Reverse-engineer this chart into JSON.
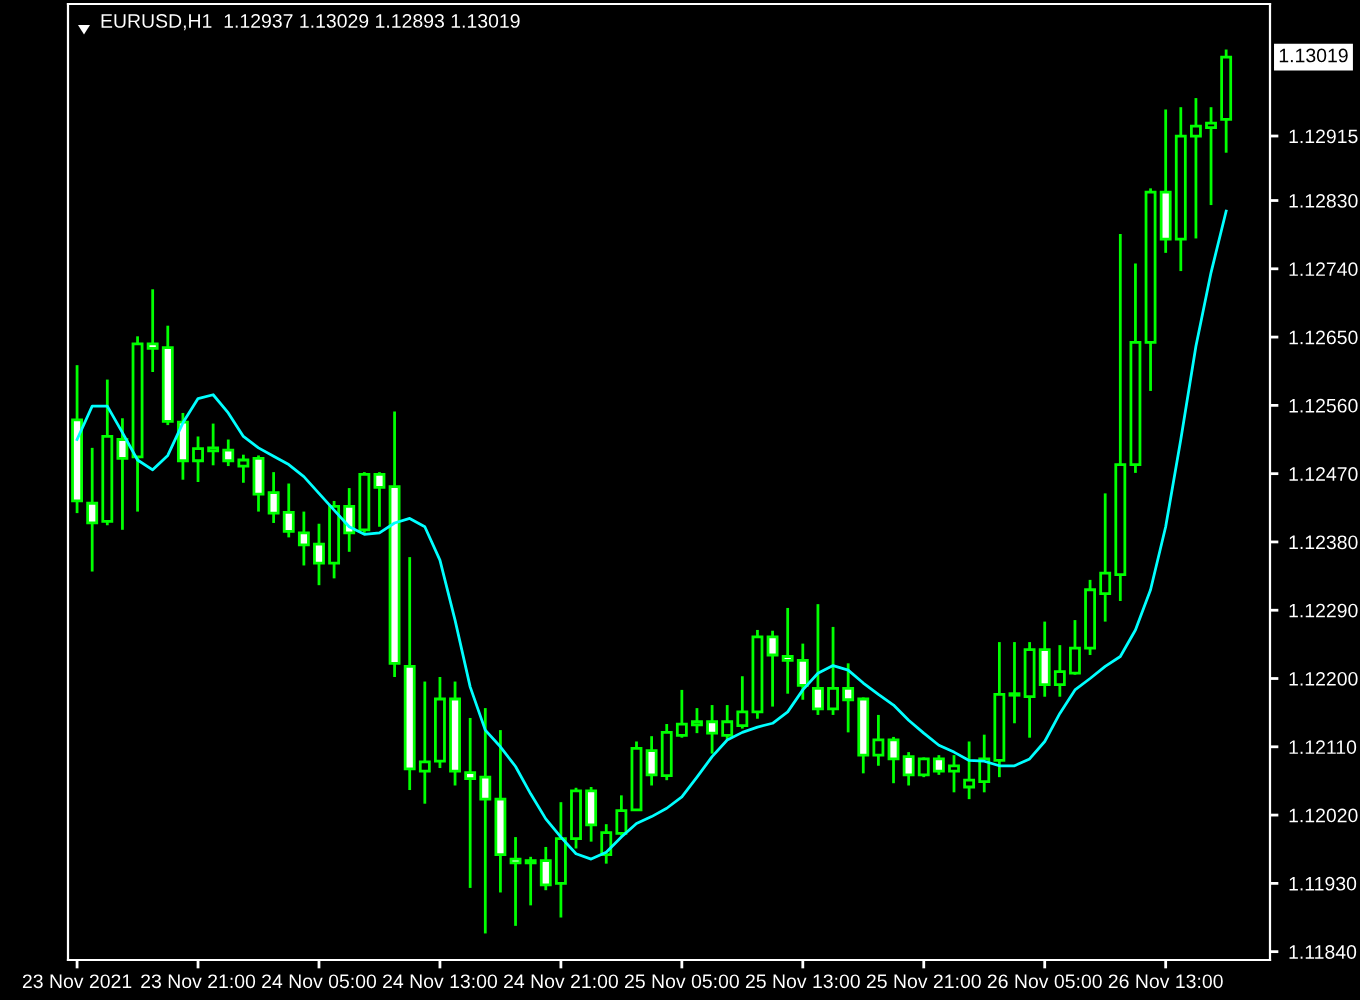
{
  "chart_data": {
    "type": "candlestick",
    "title": "EURUSD,H1  1.12937 1.13029 1.12893 1.13019",
    "categories": [
      "23 Nov 2021",
      null,
      null,
      null,
      null,
      null,
      null,
      null,
      "23 Nov 21:00",
      null,
      null,
      null,
      null,
      null,
      null,
      null,
      "24 Nov 05:00",
      null,
      null,
      null,
      null,
      null,
      null,
      null,
      "24 Nov 13:00",
      null,
      null,
      null,
      null,
      null,
      null,
      null,
      "24 Nov 21:00",
      null,
      null,
      null,
      null,
      null,
      null,
      null,
      "25 Nov 05:00",
      null,
      null,
      null,
      null,
      null,
      null,
      null,
      "25 Nov 13:00",
      null,
      null,
      null,
      null,
      null,
      null,
      null,
      "25 Nov 21:00",
      null,
      null,
      null,
      null,
      null,
      null,
      null,
      "26 Nov 05:00",
      null,
      null,
      null,
      null,
      null,
      null,
      null,
      "26 Nov 13:00",
      null,
      null,
      null,
      null
    ],
    "series": [
      {
        "type": "candlestick",
        "color": "#00ff00",
        "ohlc": [
          [
            1.12541,
            1.12613,
            1.12418,
            1.12434
          ],
          [
            1.12431,
            1.12504,
            1.12341,
            1.12405
          ],
          [
            1.12407,
            1.12594,
            1.12402,
            1.12519
          ],
          [
            1.12515,
            1.12543,
            1.12396,
            1.1249
          ],
          [
            1.12492,
            1.12651,
            1.1242,
            1.12641
          ],
          [
            1.12641,
            1.12713,
            1.12604,
            1.12635
          ],
          [
            1.12636,
            1.12665,
            1.12534,
            1.12539
          ],
          [
            1.12538,
            1.1255,
            1.12462,
            1.12487
          ],
          [
            1.12487,
            1.12519,
            1.12459,
            1.12503
          ],
          [
            1.125,
            1.12536,
            1.12481,
            1.12504
          ],
          [
            1.12501,
            1.12515,
            1.1248,
            1.12487
          ],
          [
            1.1248,
            1.12495,
            1.12458,
            1.12488
          ],
          [
            1.1249,
            1.12494,
            1.1242,
            1.12443
          ],
          [
            1.12445,
            1.12472,
            1.12405,
            1.12418
          ],
          [
            1.12419,
            1.12457,
            1.12386,
            1.12394
          ],
          [
            1.12392,
            1.1242,
            1.12349,
            1.12376
          ],
          [
            1.12377,
            1.12404,
            1.12323,
            1.12352
          ],
          [
            1.12352,
            1.12434,
            1.12332,
            1.12427
          ],
          [
            1.12427,
            1.12451,
            1.12367,
            1.12392
          ],
          [
            1.12396,
            1.12472,
            1.12392,
            1.12469
          ],
          [
            1.12469,
            1.12472,
            1.124,
            1.12452
          ],
          [
            1.12453,
            1.12552,
            1.12202,
            1.1222
          ],
          [
            1.12216,
            1.1236,
            1.12053,
            1.12081
          ],
          [
            1.12078,
            1.12196,
            1.12035,
            1.1209
          ],
          [
            1.12091,
            1.12202,
            1.12082,
            1.12173
          ],
          [
            1.12173,
            1.12196,
            1.12059,
            1.12078
          ],
          [
            1.12076,
            1.12148,
            1.11924,
            1.12068
          ],
          [
            1.1207,
            1.12161,
            1.11864,
            1.12041
          ],
          [
            1.12041,
            1.12132,
            1.11918,
            1.11968
          ],
          [
            1.11962,
            1.11991,
            1.11874,
            1.11957
          ],
          [
            1.1196,
            1.11965,
            1.11901,
            1.11957
          ],
          [
            1.1196,
            1.11978,
            1.11921,
            1.11928
          ],
          [
            1.1193,
            1.12037,
            1.11885,
            1.11989
          ],
          [
            1.11989,
            1.12056,
            1.11976,
            1.12052
          ],
          [
            1.12052,
            1.12057,
            1.11985,
            1.12007
          ],
          [
            1.11968,
            1.12008,
            1.11956,
            1.11997
          ],
          [
            1.11996,
            1.12046,
            1.11993,
            1.12026
          ],
          [
            1.12027,
            1.12117,
            1.12026,
            1.12108
          ],
          [
            1.12105,
            1.12124,
            1.12059,
            1.12073
          ],
          [
            1.12072,
            1.1214,
            1.12066,
            1.12129
          ],
          [
            1.12125,
            1.12185,
            1.12122,
            1.1214
          ],
          [
            1.12139,
            1.12161,
            1.12128,
            1.12143
          ],
          [
            1.12143,
            1.12165,
            1.12101,
            1.12128
          ],
          [
            1.12125,
            1.12165,
            1.12119,
            1.12143
          ],
          [
            1.12138,
            1.12203,
            1.12134,
            1.12156
          ],
          [
            1.12156,
            1.12264,
            1.12147,
            1.12255
          ],
          [
            1.12255,
            1.12263,
            1.12163,
            1.12231
          ],
          [
            1.12229,
            1.12293,
            1.1218,
            1.12224
          ],
          [
            1.12224,
            1.12246,
            1.12172,
            1.12191
          ],
          [
            1.12187,
            1.12298,
            1.12152,
            1.1216
          ],
          [
            1.1216,
            1.12268,
            1.12152,
            1.12187
          ],
          [
            1.12187,
            1.1222,
            1.12129,
            1.12172
          ],
          [
            1.12173,
            1.12175,
            1.12075,
            1.12099
          ],
          [
            1.12099,
            1.12152,
            1.12085,
            1.12119
          ],
          [
            1.12119,
            1.12123,
            1.12062,
            1.12094
          ],
          [
            1.12097,
            1.12103,
            1.12059,
            1.12073
          ],
          [
            1.12073,
            1.12096,
            1.1207,
            1.12094
          ],
          [
            1.12094,
            1.12099,
            1.12073,
            1.12078
          ],
          [
            1.12078,
            1.12099,
            1.1205,
            1.12085
          ],
          [
            1.12057,
            1.12117,
            1.12041,
            1.12066
          ],
          [
            1.12064,
            1.12126,
            1.1205,
            1.12094
          ],
          [
            1.12092,
            1.12248,
            1.1207,
            1.12179
          ],
          [
            1.12178,
            1.12248,
            1.12141,
            1.1218
          ],
          [
            1.12176,
            1.12248,
            1.12122,
            1.12238
          ],
          [
            1.12238,
            1.12275,
            1.12176,
            1.12192
          ],
          [
            1.12192,
            1.12244,
            1.12176,
            1.12209
          ],
          [
            1.12207,
            1.12277,
            1.12205,
            1.1224
          ],
          [
            1.1224,
            1.1233,
            1.12231,
            1.12317
          ],
          [
            1.12312,
            1.12444,
            1.12275,
            1.12339
          ],
          [
            1.12337,
            1.12786,
            1.12302,
            1.12482
          ],
          [
            1.12482,
            1.12747,
            1.12471,
            1.12643
          ],
          [
            1.12643,
            1.12846,
            1.12579,
            1.12841
          ],
          [
            1.12841,
            1.1295,
            1.12761,
            1.12779
          ],
          [
            1.12779,
            1.12953,
            1.12737,
            1.12915
          ],
          [
            1.12915,
            1.12965,
            1.1278,
            1.12928
          ],
          [
            1.12926,
            1.12953,
            1.12824,
            1.12932
          ],
          [
            1.12937,
            1.13029,
            1.12893,
            1.13019
          ]
        ]
      },
      {
        "type": "line",
        "color": "#00ffff",
        "values": [
          1.12515,
          1.12559,
          1.12559,
          1.12524,
          1.12488,
          1.12475,
          1.12494,
          1.12537,
          1.12569,
          1.12574,
          1.1255,
          1.12519,
          1.12504,
          1.12493,
          1.12482,
          1.12466,
          1.12444,
          1.12422,
          1.124,
          1.1239,
          1.12392,
          1.12405,
          1.12411,
          1.124,
          1.12356,
          1.12277,
          1.12189,
          1.12132,
          1.1211,
          1.12084,
          1.12048,
          1.12015,
          1.11991,
          1.11969,
          1.11962,
          1.11971,
          1.11991,
          1.12009,
          1.12018,
          1.12029,
          1.12044,
          1.1207,
          1.12097,
          1.12119,
          1.12129,
          1.12136,
          1.12141,
          1.12156,
          1.12185,
          1.12207,
          1.12217,
          1.12211,
          1.12194,
          1.12179,
          1.12165,
          1.12145,
          1.12128,
          1.12112,
          1.12103,
          1.12092,
          1.12091,
          1.12085,
          1.12085,
          1.12094,
          1.12117,
          1.12154,
          1.12185,
          1.122,
          1.12216,
          1.12229,
          1.12264,
          1.12317,
          1.124,
          1.12515,
          1.12638,
          1.12735,
          1.12816
        ]
      }
    ],
    "ylim": [
      1.11829,
      1.13089
    ],
    "yticks": [
      {
        "value": 1.1184,
        "label": "1.11840"
      },
      {
        "value": 1.1193,
        "label": "1.11930"
      },
      {
        "value": 1.1202,
        "label": "1.12020"
      },
      {
        "value": 1.1211,
        "label": "1.12110"
      },
      {
        "value": 1.122,
        "label": "1.12200"
      },
      {
        "value": 1.1229,
        "label": "1.12290"
      },
      {
        "value": 1.1238,
        "label": "1.12380"
      },
      {
        "value": 1.1247,
        "label": "1.12470"
      },
      {
        "value": 1.1256,
        "label": "1.12560"
      },
      {
        "value": 1.1265,
        "label": "1.12650"
      },
      {
        "value": 1.1274,
        "label": "1.12740"
      },
      {
        "value": 1.1283,
        "label": "1.12830"
      },
      1.12915
    ],
    "annotations": [
      "1.13019"
    ],
    "grid": false,
    "legend": false
  }
}
